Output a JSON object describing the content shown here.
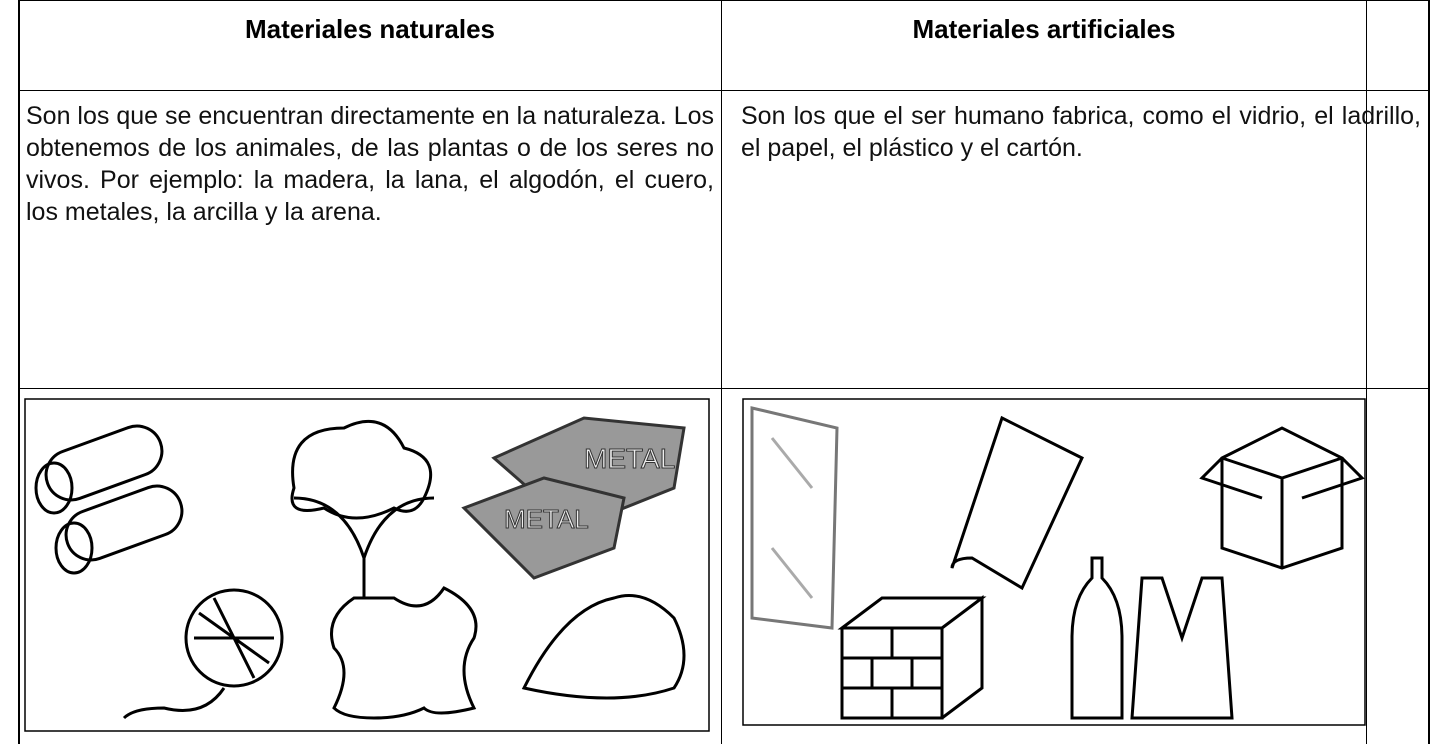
{
  "header": {
    "left": "Materiales naturales",
    "right": "Materiales artificiales"
  },
  "body": {
    "left": "Son los que se encuentran directamente en la naturaleza. Los obtenemos de los animales, de las plantas o de los seres no vivos. Por ejemplo: la madera, la lana, el algodón, el cuero, los metales, la arcilla y la arena.",
    "right": "Son los que el ser humano fabrica, como el vidrio, el ladrillo, el papel, el plástico y el cartón."
  },
  "images": {
    "metal_label": "METAL"
  }
}
